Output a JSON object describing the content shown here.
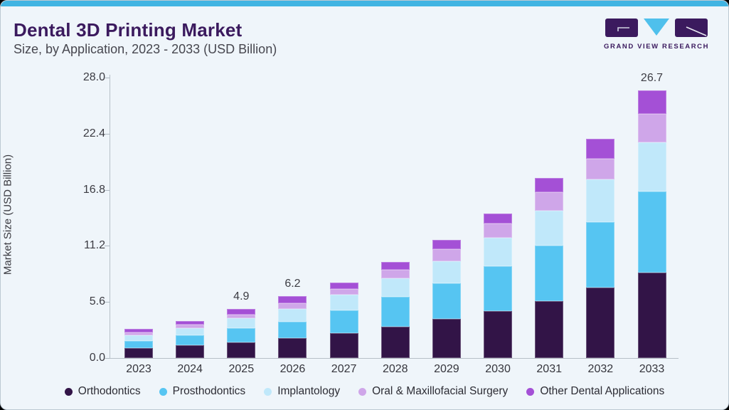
{
  "header": {
    "title": "Dental 3D Printing Market",
    "subtitle": "Size, by Application, 2023 - 2033 (USD Billion)",
    "logo_text": "GRAND VIEW RESEARCH"
  },
  "colors": {
    "top_accent_bar": "#41b4e2",
    "card_background": "#eff5fa",
    "title_purple": "#3b1a5e",
    "logo_triangle_blue": "#4fc0ec",
    "axis_line": "#b7c0c8"
  },
  "chart_data": {
    "type": "bar",
    "stacked": true,
    "title": "Dental 3D Printing Market Size, by Application, 2023 - 2033 (USD Billion)",
    "xlabel": "",
    "ylabel": "Market Size (USD Billion)",
    "ylim": [
      0,
      28
    ],
    "ytick_labels": [
      "0.0",
      "5.6",
      "11.2",
      "16.8",
      "22.4",
      "28.0"
    ],
    "grid": false,
    "legend_position": "bottom",
    "categories": [
      "2023",
      "2024",
      "2025",
      "2026",
      "2027",
      "2028",
      "2029",
      "2030",
      "2031",
      "2032",
      "2033"
    ],
    "series": [
      {
        "name": "Orthodontics",
        "color": "#321447",
        "values": [
          1.0,
          1.25,
          1.55,
          2.0,
          2.45,
          3.1,
          3.9,
          4.7,
          5.7,
          7.0,
          8.5
        ]
      },
      {
        "name": "Prosthodontics",
        "color": "#56c5f2",
        "values": [
          0.7,
          1.05,
          1.45,
          1.65,
          2.3,
          3.0,
          3.55,
          4.45,
          5.5,
          6.6,
          8.1
        ]
      },
      {
        "name": "Implantology",
        "color": "#c0e8fa",
        "values": [
          0.55,
          0.7,
          0.95,
          1.25,
          1.55,
          1.85,
          2.2,
          2.85,
          3.5,
          4.25,
          4.95
        ]
      },
      {
        "name": "Oral & Maxillofacial Surgery",
        "color": "#cfa6e9",
        "values": [
          0.33,
          0.35,
          0.4,
          0.6,
          0.6,
          0.85,
          1.2,
          1.4,
          1.85,
          2.05,
          2.8
        ]
      },
      {
        "name": "Other Dental Applications",
        "color": "#a450d6",
        "values": [
          0.32,
          0.38,
          0.55,
          0.7,
          0.65,
          0.8,
          0.95,
          1.05,
          1.4,
          2.0,
          2.35
        ]
      }
    ],
    "value_labels": {
      "2025": "4.9",
      "2026": "6.2",
      "2033": "26.7"
    },
    "totals_estimated": [
      2.9,
      3.7,
      4.9,
      6.2,
      7.6,
      9.6,
      11.8,
      14.5,
      18.0,
      21.9,
      26.7
    ]
  }
}
